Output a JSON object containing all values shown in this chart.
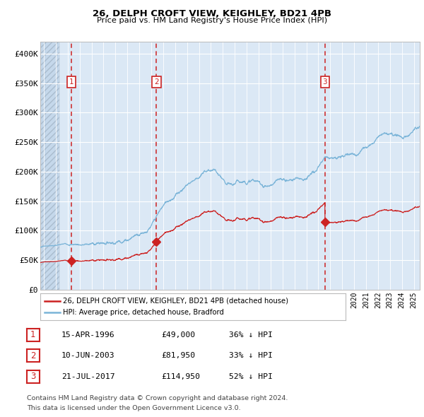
{
  "title1": "26, DELPH CROFT VIEW, KEIGHLEY, BD21 4PB",
  "title2": "Price paid vs. HM Land Registry's House Price Index (HPI)",
  "ylim": [
    0,
    420000
  ],
  "yticks": [
    0,
    50000,
    100000,
    150000,
    200000,
    250000,
    300000,
    350000,
    400000
  ],
  "ytick_labels": [
    "£0",
    "£50K",
    "£100K",
    "£150K",
    "£200K",
    "£250K",
    "£300K",
    "£350K",
    "£400K"
  ],
  "xlim_start": 1993.7,
  "xlim_end": 2025.5,
  "hpi_color": "#7ab4d8",
  "price_color": "#cc2222",
  "bg_color": "#dbe8f5",
  "sale_dates": [
    1996.29,
    2003.44,
    2017.55
  ],
  "sale_prices": [
    49000,
    81950,
    114950
  ],
  "sale_labels": [
    "1",
    "2",
    "3"
  ],
  "legend_label_red": "26, DELPH CROFT VIEW, KEIGHLEY, BD21 4PB (detached house)",
  "legend_label_blue": "HPI: Average price, detached house, Bradford",
  "table_rows": [
    [
      "1",
      "15-APR-1996",
      "£49,000",
      "36% ↓ HPI"
    ],
    [
      "2",
      "10-JUN-2003",
      "£81,950",
      "33% ↓ HPI"
    ],
    [
      "3",
      "21-JUL-2017",
      "£114,950",
      "52% ↓ HPI"
    ]
  ],
  "footnote1": "Contains HM Land Registry data © Crown copyright and database right 2024.",
  "footnote2": "This data is licensed under the Open Government Licence v3.0."
}
